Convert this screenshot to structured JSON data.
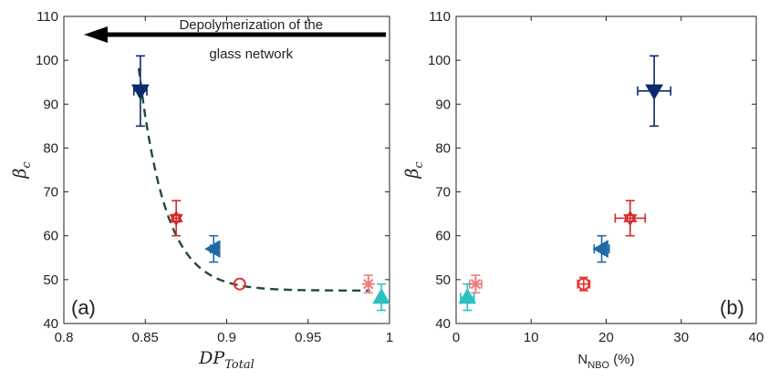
{
  "chart_data": [
    {
      "type": "scatter",
      "panel_label": "(a)",
      "xlabel": "DP",
      "xlabel_sub": "Total",
      "ylabel": "β",
      "ylabel_sub": "c",
      "xlim": [
        0.8,
        1.0
      ],
      "ylim": [
        40,
        110
      ],
      "xticks": [
        "0.8",
        "0.85",
        "0.9",
        "0.95",
        "1"
      ],
      "yticks": [
        "40",
        "50",
        "60",
        "70",
        "80",
        "90",
        "100",
        "110"
      ],
      "annotation": {
        "line1": "Depolymerization of the",
        "line2": "glass network"
      },
      "points": [
        {
          "x": 0.847,
          "y": 93,
          "xerr": 0.004,
          "yerr": 8,
          "marker": "triangle-down",
          "color": "#0b2a6e"
        },
        {
          "x": 0.869,
          "y": 64,
          "xerr": 0.002,
          "yerr": 4,
          "marker": "hexagram",
          "color": "#d42a2a"
        },
        {
          "x": 0.892,
          "y": 57,
          "xerr": 0.002,
          "yerr": 3,
          "marker": "triangle-left",
          "color": "#1f6aa5"
        },
        {
          "x": 0.908,
          "y": 49,
          "xerr": 0.0,
          "yerr": 0,
          "marker": "circle-open",
          "color": "#e8332e"
        },
        {
          "x": 0.987,
          "y": 49,
          "xerr": 0.0,
          "yerr": 2,
          "marker": "asterisk",
          "color": "#f07a7a"
        },
        {
          "x": 0.995,
          "y": 46,
          "xerr": 0.0,
          "yerr": 3,
          "marker": "triangle-up",
          "color": "#2cc0c0"
        }
      ],
      "fit_curve": {
        "style": "dashed",
        "color": "#1f4a3a"
      }
    },
    {
      "type": "scatter",
      "panel_label": "(b)",
      "xlabel": "N",
      "xlabel_sub": "NBO",
      "xlabel_suffix": " (%)",
      "ylabel": "β",
      "ylabel_sub": "c",
      "xlim": [
        0,
        40
      ],
      "ylim": [
        40,
        110
      ],
      "xticks": [
        "0",
        "10",
        "20",
        "30",
        "40"
      ],
      "yticks": [
        "40",
        "50",
        "60",
        "70",
        "80",
        "90",
        "100",
        "110"
      ],
      "points": [
        {
          "x": 26.4,
          "y": 93,
          "xerr": 2.2,
          "yerr": 8,
          "marker": "triangle-down",
          "color": "#0b2a6e"
        },
        {
          "x": 23.2,
          "y": 64,
          "xerr": 2.0,
          "yerr": 4,
          "marker": "hexagram",
          "color": "#d42a2a"
        },
        {
          "x": 19.4,
          "y": 57,
          "xerr": 1.0,
          "yerr": 3,
          "marker": "triangle-left",
          "color": "#1f6aa5"
        },
        {
          "x": 17.0,
          "y": 49,
          "xerr": 0.8,
          "yerr": 1.5,
          "marker": "circle-open",
          "color": "#e8332e"
        },
        {
          "x": 2.6,
          "y": 49,
          "xerr": 0.8,
          "yerr": 2,
          "marker": "asterisk",
          "color": "#f07a7a"
        },
        {
          "x": 1.5,
          "y": 46,
          "xerr": 0.9,
          "yerr": 3,
          "marker": "triangle-up",
          "color": "#2cc0c0"
        }
      ]
    }
  ]
}
